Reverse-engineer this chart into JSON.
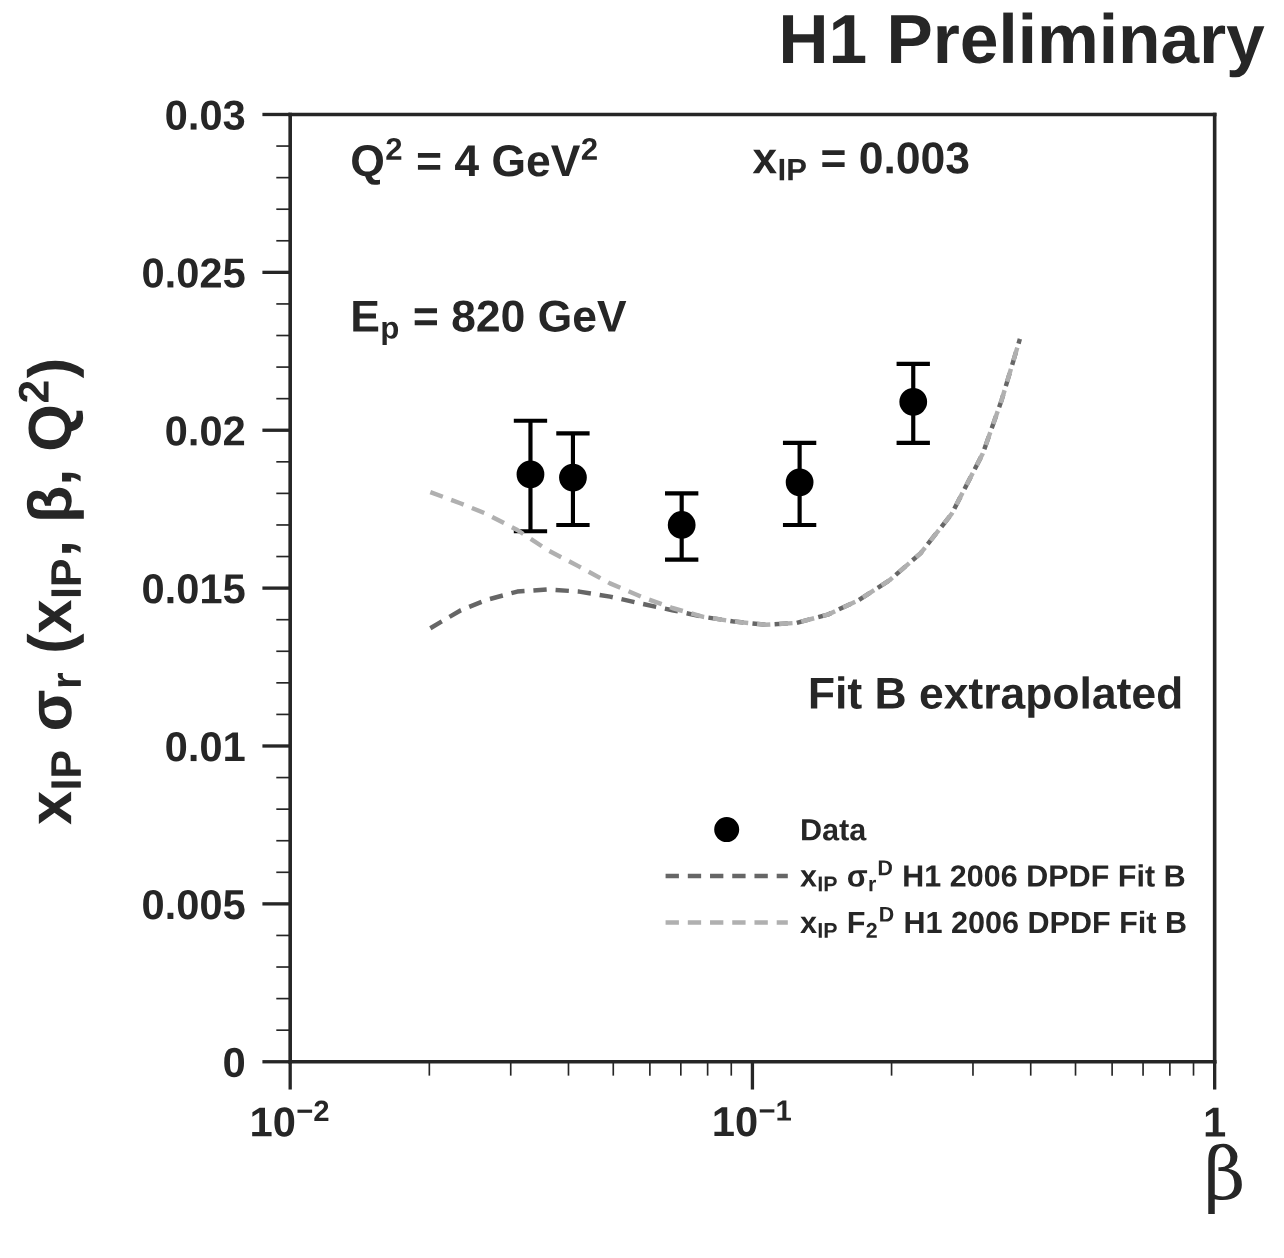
{
  "chart_data": {
    "type": "scatter",
    "title": "H1 Preliminary",
    "xlabel": "β",
    "ylabel": "x$_{IP}$ σ$_{r}$ (x$_{IP}$, β, Q$^{2}$)",
    "log": "x",
    "xlim": [
      0.01,
      1
    ],
    "xticks": [
      {
        "value": 0.01,
        "label": "10$^{−2}$"
      },
      {
        "value": 0.1,
        "label": "10$^{−1}$"
      },
      1
    ],
    "ylim": [
      0,
      0.03
    ],
    "yticks": [
      0,
      0.005,
      0.01,
      0.015,
      0.02,
      0.025,
      0.03
    ],
    "grid": false,
    "legend": "bottom right",
    "annotations": [
      "Q$^{2}$ = 4 GeV$^{2}$",
      "x$_{IP}$ = 0.003",
      "E$_{p}$ = 820 GeV",
      "Fit B extrapolated"
    ],
    "series": [
      {
        "name": "Data",
        "marker": "circle",
        "color": "#000000",
        "x": [
          0.0331,
          0.0409,
          0.0703,
          0.1265,
          0.2228
        ],
        "values": [
          0.0186,
          0.0185,
          0.017,
          0.01835,
          0.0209
        ],
        "errors": [
          [
            0.0168,
            0.0203
          ],
          [
            0.017,
            0.0199
          ],
          [
            0.0159,
            0.018
          ],
          [
            0.017,
            0.0196
          ],
          [
            0.0196,
            0.0221
          ]
        ]
      },
      {
        "name": "x$_{IP}$ σ$_{r}$$^{D}$ H1 2006 DPDF Fit B",
        "type": "line",
        "line_style": "dashed",
        "color": "#666666",
        "x": [
          0.0201,
          0.0234,
          0.0265,
          0.031,
          0.0361,
          0.0422,
          0.0492,
          0.0574,
          0.0671,
          0.0783,
          0.0914,
          0.1067,
          0.1247,
          0.1455,
          0.1698,
          0.198,
          0.231,
          0.27,
          0.315,
          0.346,
          0.379
        ],
        "values": [
          0.01373,
          0.0143,
          0.01462,
          0.01489,
          0.01496,
          0.01489,
          0.01473,
          0.01451,
          0.0143,
          0.01409,
          0.01394,
          0.01384,
          0.0139,
          0.01416,
          0.01462,
          0.01525,
          0.0161,
          0.01736,
          0.01926,
          0.02095,
          0.02289
        ]
      },
      {
        "name": "x$_{IP}$ F$_{2}$$^{D}$ H1 2006 DPDF Fit B",
        "type": "line",
        "line_style": "dashed",
        "color": "#b0b0b0",
        "x": [
          0.0201,
          0.0234,
          0.0265,
          0.031,
          0.0361,
          0.0422,
          0.0492,
          0.0574,
          0.0671,
          0.0783,
          0.0914,
          0.1067,
          0.1247,
          0.1455,
          0.1698,
          0.198,
          0.231,
          0.27,
          0.315,
          0.346,
          0.379
        ],
        "values": [
          0.01804,
          0.01768,
          0.01736,
          0.01684,
          0.0162,
          0.01568,
          0.01515,
          0.01473,
          0.01437,
          0.01409,
          0.01394,
          0.01384,
          0.0139,
          0.01416,
          0.01462,
          0.01525,
          0.0161,
          0.01736,
          0.01926,
          0.02095,
          0.02289
        ]
      }
    ]
  }
}
